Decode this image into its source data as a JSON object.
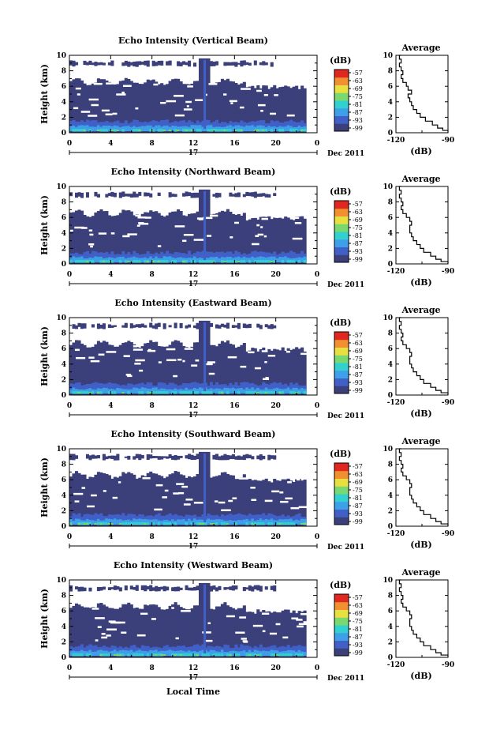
{
  "figure": {
    "xlabel": "Local Time"
  },
  "chart_data": [
    {
      "type": "heatmap",
      "title": "Echo Intensity (Vertical Beam)",
      "ylabel": "Height (km)",
      "x_ticks": [
        "0",
        "4",
        "8",
        "12",
        "16",
        "20",
        "0"
      ],
      "y_ticks": [
        "0",
        "2",
        "4",
        "6",
        "8",
        "10"
      ],
      "xlim": [
        0,
        24
      ],
      "ylim": [
        0,
        10
      ],
      "date_mid": "17",
      "date_label": "Dec 2011",
      "colorbar": {
        "unit": "(dB)",
        "ticks": [
          "-57",
          "-63",
          "-69",
          "-75",
          "-81",
          "-87",
          "-93",
          "-99"
        ]
      },
      "average": {
        "title": "Average",
        "xlabel": "(dB)",
        "x_ticks": [
          "-120",
          "-90"
        ],
        "y_ticks": [
          "0",
          "2",
          "4",
          "6",
          "8",
          "10"
        ],
        "xlim": [
          -120,
          -90
        ],
        "profile": [
          [
            -90,
            0.0
          ],
          [
            -93,
            0.3
          ],
          [
            -96,
            0.6
          ],
          [
            -99,
            1.0
          ],
          [
            -103,
            1.5
          ],
          [
            -106,
            2.0
          ],
          [
            -108,
            2.5
          ],
          [
            -110,
            3.0
          ],
          [
            -111,
            3.5
          ],
          [
            -112,
            4.0
          ],
          [
            -113,
            4.5
          ],
          [
            -111,
            5.0
          ],
          [
            -113,
            5.5
          ],
          [
            -114,
            6.0
          ],
          [
            -116,
            6.5
          ],
          [
            -117,
            7.0
          ],
          [
            -116,
            7.5
          ],
          [
            -117,
            8.0
          ],
          [
            -118,
            8.5
          ],
          [
            -117,
            9.0
          ],
          [
            -118,
            9.5
          ],
          [
            -117,
            10.0
          ]
        ]
      }
    },
    {
      "type": "heatmap",
      "title": "Echo Intensity (Northward Beam)",
      "ylabel": "Height (km)",
      "x_ticks": [
        "0",
        "4",
        "8",
        "12",
        "16",
        "20",
        "0"
      ],
      "y_ticks": [
        "0",
        "2",
        "4",
        "6",
        "8",
        "10"
      ],
      "xlim": [
        0,
        24
      ],
      "ylim": [
        0,
        10
      ],
      "date_mid": "17",
      "date_label": "Dec 2011",
      "colorbar": {
        "unit": "(dB)",
        "ticks": [
          "-57",
          "-63",
          "-69",
          "-75",
          "-81",
          "-87",
          "-93",
          "-99"
        ]
      },
      "average": {
        "title": "Average",
        "xlabel": "(dB)",
        "x_ticks": [
          "-120",
          "-90"
        ],
        "y_ticks": [
          "0",
          "2",
          "4",
          "6",
          "8",
          "10"
        ],
        "xlim": [
          -120,
          -90
        ],
        "profile": [
          [
            -90,
            0.0
          ],
          [
            -94,
            0.3
          ],
          [
            -97,
            0.6
          ],
          [
            -100,
            1.0
          ],
          [
            -104,
            1.5
          ],
          [
            -106,
            2.0
          ],
          [
            -108,
            2.5
          ],
          [
            -110,
            3.0
          ],
          [
            -111,
            3.5
          ],
          [
            -112,
            4.0
          ],
          [
            -112,
            4.5
          ],
          [
            -111,
            5.0
          ],
          [
            -112,
            5.5
          ],
          [
            -114,
            6.0
          ],
          [
            -116,
            6.5
          ],
          [
            -117,
            7.0
          ],
          [
            -116,
            7.5
          ],
          [
            -117,
            8.0
          ],
          [
            -118,
            8.5
          ],
          [
            -117,
            9.0
          ],
          [
            -118,
            9.5
          ],
          [
            -117,
            10.0
          ]
        ]
      }
    },
    {
      "type": "heatmap",
      "title": "Echo Intensity (Eastward Beam)",
      "ylabel": "Height (km)",
      "x_ticks": [
        "0",
        "4",
        "8",
        "12",
        "16",
        "20",
        "0"
      ],
      "y_ticks": [
        "0",
        "2",
        "4",
        "6",
        "8",
        "10"
      ],
      "xlim": [
        0,
        24
      ],
      "ylim": [
        0,
        10
      ],
      "date_mid": "17",
      "date_label": "Dec 2011",
      "colorbar": {
        "unit": "(dB)",
        "ticks": [
          "-57",
          "-63",
          "-69",
          "-75",
          "-81",
          "-87",
          "-93",
          "-99"
        ]
      },
      "average": {
        "title": "Average",
        "xlabel": "(dB)",
        "x_ticks": [
          "-120",
          "-90"
        ],
        "y_ticks": [
          "0",
          "2",
          "4",
          "6",
          "8",
          "10"
        ],
        "xlim": [
          -120,
          -90
        ],
        "profile": [
          [
            -90,
            0.0
          ],
          [
            -94,
            0.3
          ],
          [
            -97,
            0.6
          ],
          [
            -100,
            1.0
          ],
          [
            -104,
            1.5
          ],
          [
            -106,
            2.0
          ],
          [
            -108,
            2.5
          ],
          [
            -110,
            3.0
          ],
          [
            -111,
            3.5
          ],
          [
            -112,
            4.0
          ],
          [
            -112,
            4.5
          ],
          [
            -111,
            5.0
          ],
          [
            -112,
            5.5
          ],
          [
            -114,
            6.0
          ],
          [
            -116,
            6.5
          ],
          [
            -117,
            7.0
          ],
          [
            -116,
            7.5
          ],
          [
            -117,
            8.0
          ],
          [
            -118,
            8.5
          ],
          [
            -117,
            9.0
          ],
          [
            -118,
            9.5
          ],
          [
            -117,
            10.0
          ]
        ]
      }
    },
    {
      "type": "heatmap",
      "title": "Echo Intensity (Southward Beam)",
      "ylabel": "Height (km)",
      "x_ticks": [
        "0",
        "4",
        "8",
        "12",
        "16",
        "20",
        "0"
      ],
      "y_ticks": [
        "0",
        "2",
        "4",
        "6",
        "8",
        "10"
      ],
      "xlim": [
        0,
        24
      ],
      "ylim": [
        0,
        10
      ],
      "date_mid": "17",
      "date_label": "Dec 2011",
      "colorbar": {
        "unit": "(dB)",
        "ticks": [
          "-57",
          "-63",
          "-69",
          "-75",
          "-81",
          "-87",
          "-93",
          "-99"
        ]
      },
      "average": {
        "title": "Average",
        "xlabel": "(dB)",
        "x_ticks": [
          "-120",
          "-90"
        ],
        "y_ticks": [
          "0",
          "2",
          "4",
          "6",
          "8",
          "10"
        ],
        "xlim": [
          -120,
          -90
        ],
        "profile": [
          [
            -90,
            0.0
          ],
          [
            -94,
            0.3
          ],
          [
            -97,
            0.6
          ],
          [
            -100,
            1.0
          ],
          [
            -104,
            1.5
          ],
          [
            -106,
            2.0
          ],
          [
            -108,
            2.5
          ],
          [
            -110,
            3.0
          ],
          [
            -111,
            3.5
          ],
          [
            -112,
            4.0
          ],
          [
            -112,
            4.5
          ],
          [
            -111,
            5.0
          ],
          [
            -112,
            5.5
          ],
          [
            -114,
            6.0
          ],
          [
            -116,
            6.5
          ],
          [
            -117,
            7.0
          ],
          [
            -116,
            7.5
          ],
          [
            -117,
            8.0
          ],
          [
            -118,
            8.5
          ],
          [
            -117,
            9.0
          ],
          [
            -118,
            9.5
          ],
          [
            -117,
            10.0
          ]
        ]
      }
    },
    {
      "type": "heatmap",
      "title": "Echo Intensity (Westward Beam)",
      "ylabel": "Height (km)",
      "x_ticks": [
        "0",
        "4",
        "8",
        "12",
        "16",
        "20",
        "0"
      ],
      "y_ticks": [
        "0",
        "2",
        "4",
        "6",
        "8",
        "10"
      ],
      "xlim": [
        0,
        24
      ],
      "ylim": [
        0,
        10
      ],
      "date_mid": "17",
      "date_label": "Dec 2011",
      "colorbar": {
        "unit": "(dB)",
        "ticks": [
          "-57",
          "-63",
          "-69",
          "-75",
          "-81",
          "-87",
          "-93",
          "-99"
        ]
      },
      "average": {
        "title": "Average",
        "xlabel": "(dB)",
        "x_ticks": [
          "-120",
          "-90"
        ],
        "y_ticks": [
          "0",
          "2",
          "4",
          "6",
          "8",
          "10"
        ],
        "xlim": [
          -120,
          -90
        ],
        "profile": [
          [
            -90,
            0.0
          ],
          [
            -94,
            0.3
          ],
          [
            -97,
            0.6
          ],
          [
            -100,
            1.0
          ],
          [
            -104,
            1.5
          ],
          [
            -106,
            2.0
          ],
          [
            -108,
            2.5
          ],
          [
            -110,
            3.0
          ],
          [
            -111,
            3.5
          ],
          [
            -112,
            4.0
          ],
          [
            -112,
            4.5
          ],
          [
            -111,
            5.0
          ],
          [
            -112,
            5.5
          ],
          [
            -114,
            6.0
          ],
          [
            -116,
            6.5
          ],
          [
            -117,
            7.0
          ],
          [
            -116,
            7.5
          ],
          [
            -117,
            8.0
          ],
          [
            -118,
            8.5
          ],
          [
            -117,
            9.0
          ],
          [
            -118,
            9.5
          ],
          [
            -117,
            10.0
          ]
        ]
      }
    }
  ],
  "colors": {
    "background_echo": "#3b3f7a",
    "colormap": [
      "#3b3f7a",
      "#4060c8",
      "#3ea0e8",
      "#33d0d0",
      "#7ad870",
      "#e8e040",
      "#f09030",
      "#e02820"
    ]
  }
}
